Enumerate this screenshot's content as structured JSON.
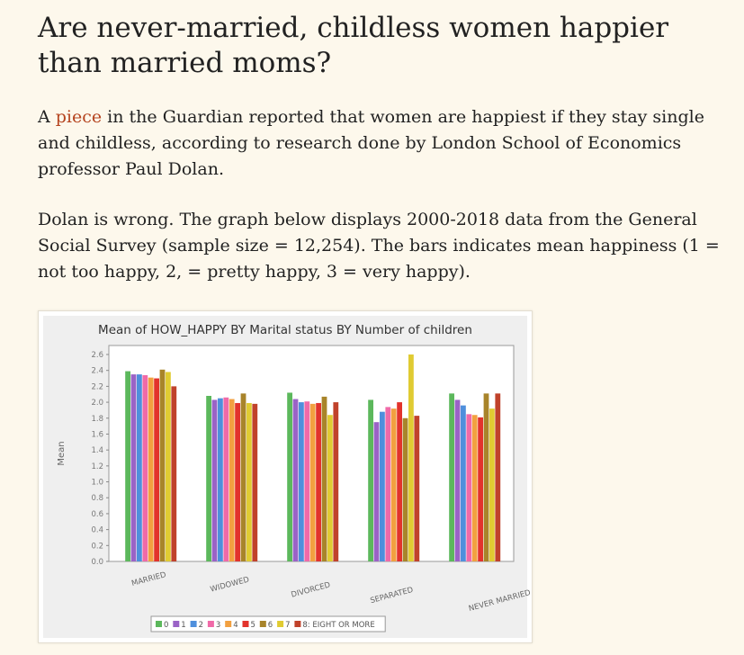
{
  "article": {
    "title": "Are never-married, childless women happier than married moms?",
    "p1_before": "A ",
    "p1_link": "piece",
    "p1_after": " in the Guardian reported that women are happiest if they stay single and childless, according to research done by London School of Economics professor Paul Dolan.",
    "p2": "Dolan is wrong. The graph below displays 2000-2018 data from the General Social Survey (sample size = 12,254).  The bars indicates mean happiness (1 = not too happy, 2, = pretty happy, 3 = very happy)."
  },
  "chart_data": {
    "type": "bar",
    "title": "Mean of HOW_HAPPY BY Marital status BY Number of children",
    "ylabel": "Mean",
    "xlabel": "",
    "ylim": [
      0,
      2.6
    ],
    "yticks": [
      "0.0",
      "0.2",
      "0.4",
      "0.6",
      "0.8",
      "1.0",
      "1.2",
      "1.4",
      "1.6",
      "1.8",
      "2.0",
      "2.2",
      "2.4",
      "2.6"
    ],
    "categories": [
      "MARRIED",
      "WIDOWED",
      "DIVORCED",
      "SEPARATED",
      "NEVER MARRIED"
    ],
    "legend_position": "bottom",
    "grid": false,
    "series": [
      {
        "name": "0",
        "color": "#5cb85c",
        "values": [
          2.39,
          2.08,
          2.12,
          2.03,
          2.11
        ]
      },
      {
        "name": "1",
        "color": "#9a63c6",
        "values": [
          2.35,
          2.03,
          2.04,
          1.75,
          2.03
        ]
      },
      {
        "name": "2",
        "color": "#4f8fdc",
        "values": [
          2.35,
          2.05,
          2.0,
          1.88,
          1.96
        ]
      },
      {
        "name": "3",
        "color": "#f06aa8",
        "values": [
          2.34,
          2.06,
          2.01,
          1.94,
          1.85
        ]
      },
      {
        "name": "4",
        "color": "#f2a040",
        "values": [
          2.31,
          2.04,
          1.98,
          1.92,
          1.84
        ]
      },
      {
        "name": "5",
        "color": "#e2332c",
        "values": [
          2.3,
          1.99,
          1.99,
          2.0,
          1.81
        ]
      },
      {
        "name": "6",
        "color": "#a8842a",
        "values": [
          2.41,
          2.11,
          2.07,
          1.8,
          2.11
        ]
      },
      {
        "name": "7",
        "color": "#e0cb32",
        "values": [
          2.38,
          1.99,
          1.84,
          2.6,
          1.92
        ]
      },
      {
        "name": "8: EIGHT OR MORE",
        "color": "#c0422b",
        "values": [
          2.2,
          1.98,
          2.0,
          1.83,
          2.11
        ]
      }
    ]
  }
}
